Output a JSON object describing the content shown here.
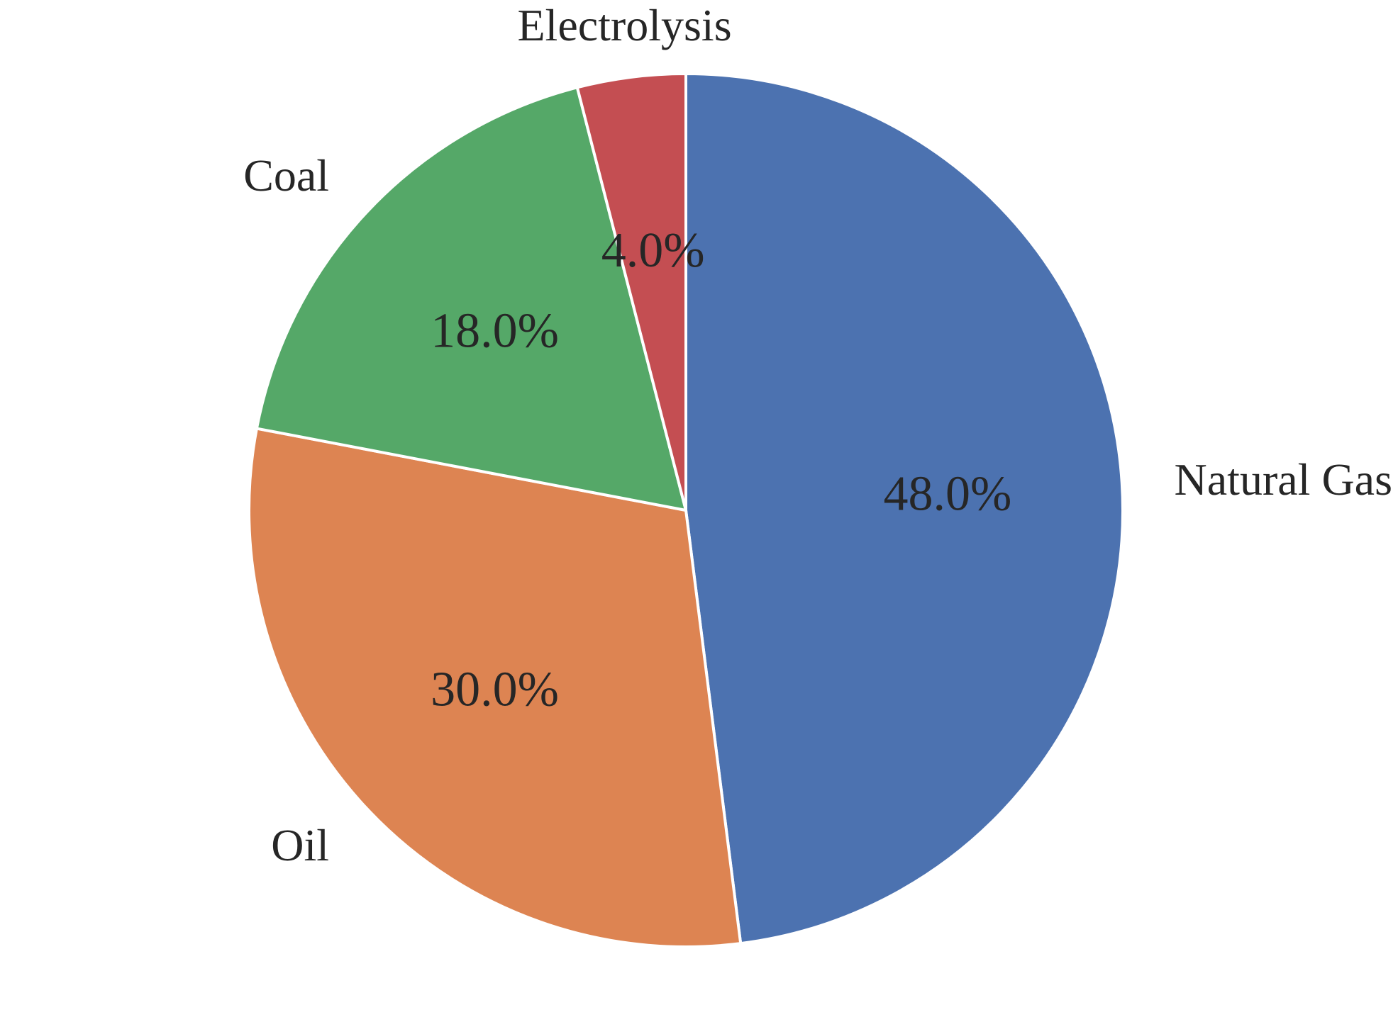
{
  "chart_data": {
    "type": "pie",
    "title": "",
    "categories": [
      "Natural Gas",
      "Oil",
      "Coal",
      "Electrolysis"
    ],
    "values": [
      48.0,
      30.0,
      18.0,
      4.0
    ],
    "percent_labels": [
      "48.0%",
      "30.0%",
      "18.0%",
      "4.0%"
    ],
    "colors": [
      "#4c72b0",
      "#dd8452",
      "#55a868",
      "#c44e52"
    ],
    "start_angle": "top (12 o'clock)",
    "direction": "clockwise",
    "legend": "none"
  }
}
